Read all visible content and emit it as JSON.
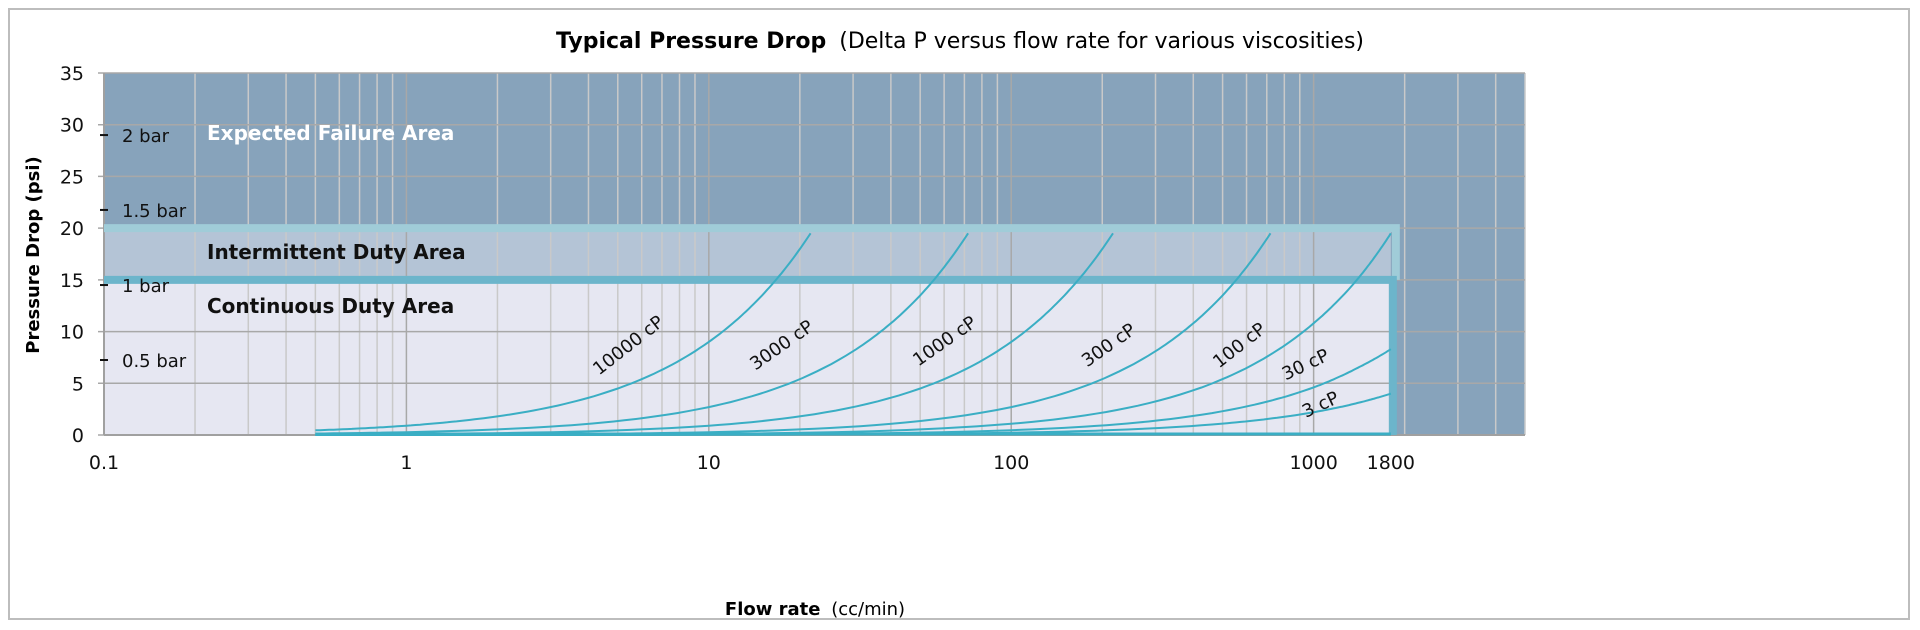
{
  "chart_data": {
    "type": "line",
    "title": "Typical Pressure Drop",
    "subtitle": "(Delta P versus flow rate for various viscosities)",
    "xlabel": "Flow rate",
    "xlabel_unit": "(cc/min)",
    "ylabel": "Pressure Drop (psi)",
    "x_scale": "log",
    "xlim": [
      0.1,
      5000
    ],
    "ylim": [
      0,
      35
    ],
    "x_ticks": [
      0.1,
      1,
      10,
      100,
      1000,
      1800
    ],
    "x_tick_labels": [
      "0.1",
      "1",
      "10",
      "100",
      "1000",
      "1800"
    ],
    "y_ticks": [
      0,
      5,
      10,
      15,
      20,
      25,
      30,
      35
    ],
    "y_tick_labels": [
      "0",
      "5",
      "10",
      "15",
      "20",
      "25",
      "30",
      "35"
    ],
    "secondary_y_ticks": [
      {
        "psi": 7.25,
        "label": "0.5 bar"
      },
      {
        "psi": 14.5,
        "label": "1 bar"
      },
      {
        "psi": 21.76,
        "label": "1.5 bar"
      },
      {
        "psi": 29.0,
        "label": "2 bar"
      }
    ],
    "grid": true,
    "regions": [
      {
        "label": "Expected Failure Area",
        "y_from": 20,
        "y_to": 35,
        "color": "#87a3bb"
      },
      {
        "label": "Intermittent Duty Area",
        "x_from": 0.1,
        "x_to": 1800,
        "y_from": 15,
        "y_to": 20,
        "color": "#b4c4d6"
      },
      {
        "label": "Continuous Duty Area",
        "x_from": 0.1,
        "x_to": 1800,
        "y_from": 0,
        "y_to": 15,
        "color": "#e6e7f2"
      }
    ],
    "series_color": "#3aaec4",
    "series": [
      {
        "name": "10000 cP",
        "x": [
          0.5,
          1,
          2,
          5,
          10,
          15,
          21.7
        ],
        "y": [
          0.45,
          0.9,
          1.8,
          4.5,
          9,
          13.5,
          19.5
        ]
      },
      {
        "name": "3000 cP",
        "x": [
          0.5,
          2,
          10,
          30,
          50,
          72
        ],
        "y": [
          0.14,
          0.54,
          2.7,
          8.1,
          13.5,
          19.5
        ]
      },
      {
        "name": "1000 cP",
        "x": [
          0.5,
          10,
          50,
          100,
          150,
          217
        ],
        "y": [
          0.05,
          0.9,
          4.5,
          9,
          13.5,
          19.5
        ]
      },
      {
        "name": "300 cP",
        "x": [
          0.5,
          10,
          100,
          300,
          500,
          720
        ],
        "y": [
          0.01,
          0.27,
          2.7,
          8.1,
          13.5,
          19.5
        ]
      },
      {
        "name": "100 cP",
        "x": [
          0.5,
          100,
          500,
          1000,
          1400,
          1800
        ],
        "y": [
          0.0,
          1.08,
          5.4,
          10.8,
          15.1,
          19.5
        ]
      },
      {
        "name": "30 cP",
        "x": [
          0.5,
          100,
          500,
          1000,
          1400,
          1800
        ],
        "y": [
          0.0,
          0.46,
          2.3,
          4.6,
          6.5,
          8.3
        ]
      },
      {
        "name": "3 cP",
        "x": [
          0.5,
          100,
          500,
          1000,
          1400,
          1800
        ],
        "y": [
          0.0,
          0.22,
          1.1,
          2.2,
          3.1,
          4.0
        ]
      }
    ]
  }
}
